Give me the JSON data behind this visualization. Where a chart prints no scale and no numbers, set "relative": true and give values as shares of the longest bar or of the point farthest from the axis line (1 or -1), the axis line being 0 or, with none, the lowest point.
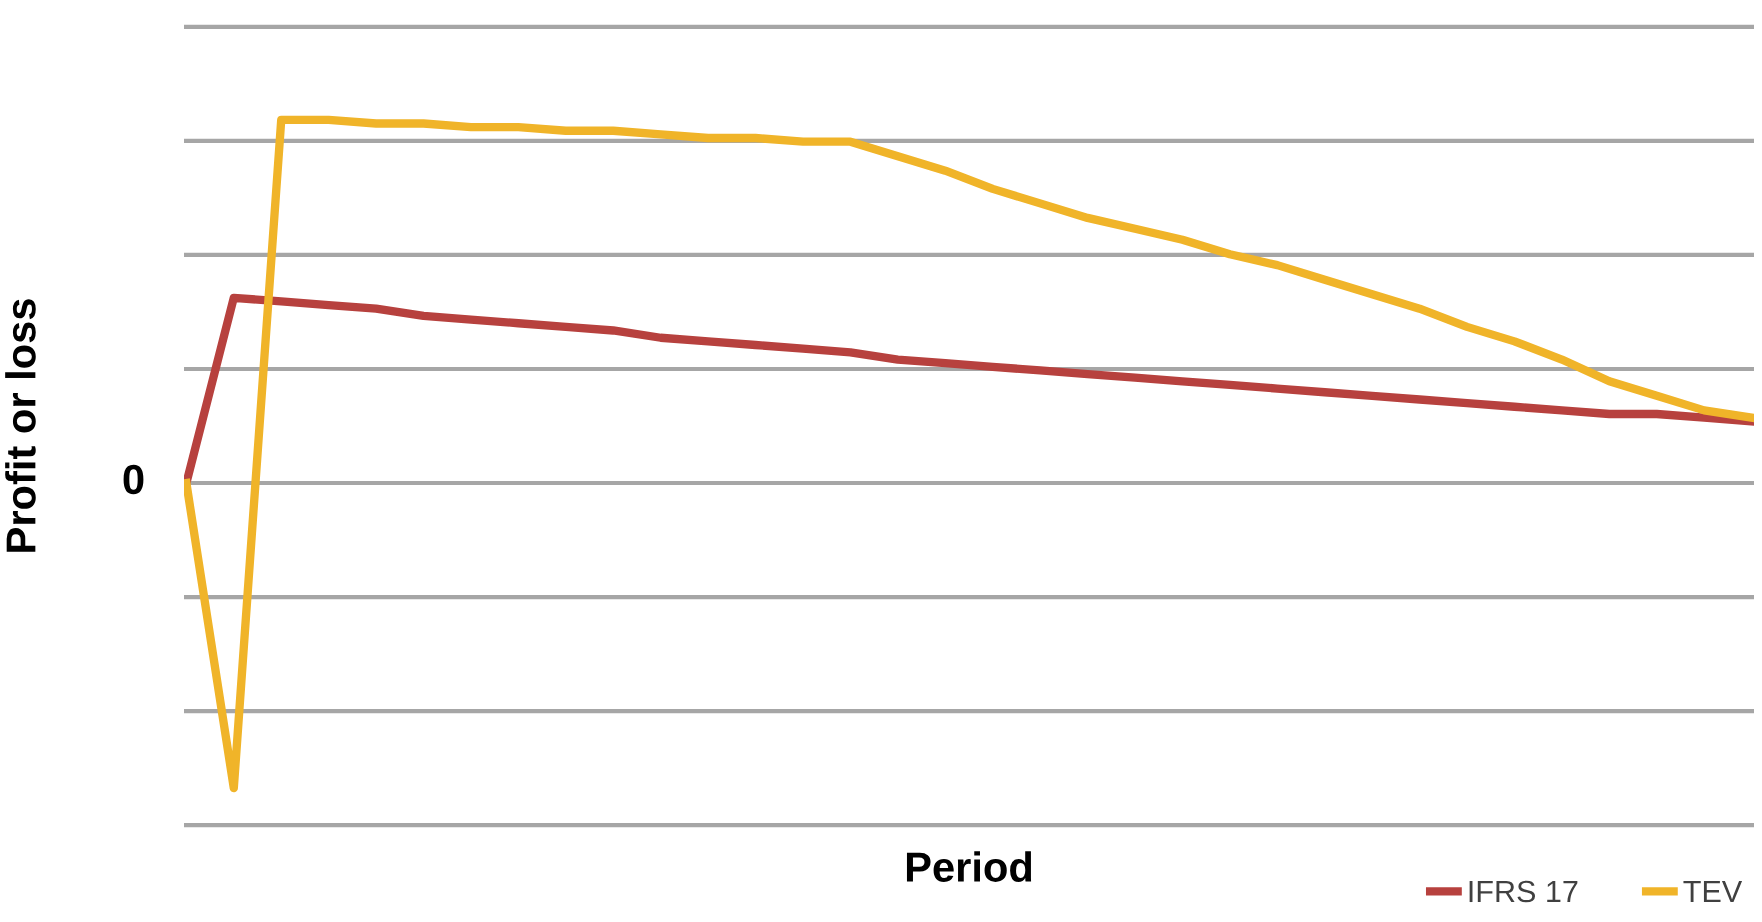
{
  "chart_data": {
    "type": "line",
    "relative": true,
    "xlabel": "Period",
    "ylabel": "Profit or loss",
    "categories": [
      null,
      null,
      null,
      null,
      null,
      null,
      null,
      null,
      null,
      null,
      null,
      null,
      null,
      null,
      null,
      null,
      null,
      null,
      null,
      null,
      null,
      null,
      null,
      null,
      null,
      null,
      null,
      null,
      null,
      null,
      null,
      null,
      null,
      null
    ],
    "annotations": [
      "0"
    ],
    "grid": "y",
    "legend": "bottom right",
    "marker": "none",
    "line_style": "solid",
    "series": [
      {
        "name": "IFRS 17",
        "color": "#b7413e",
        "values": [
          0,
          0.51,
          0.5,
          0.49,
          0.48,
          0.46,
          0.45,
          0.44,
          0.43,
          0.42,
          0.4,
          0.39,
          0.38,
          0.37,
          0.36,
          0.34,
          0.33,
          0.32,
          0.31,
          0.3,
          0.29,
          0.28,
          0.27,
          0.26,
          0.25,
          0.24,
          0.23,
          0.22,
          0.21,
          0.2,
          0.19,
          0.19,
          0.18,
          0.17
        ]
      },
      {
        "name": "TEV",
        "color": "#f0b429",
        "values": [
          0,
          -0.84,
          1.0,
          1.0,
          0.99,
          0.99,
          0.98,
          0.98,
          0.97,
          0.97,
          0.96,
          0.95,
          0.95,
          0.94,
          0.94,
          0.9,
          0.86,
          0.81,
          0.77,
          0.73,
          0.7,
          0.67,
          0.63,
          0.6,
          0.56,
          0.52,
          0.48,
          0.43,
          0.39,
          0.34,
          0.28,
          0.24,
          0.2,
          0.18
        ]
      }
    ]
  }
}
